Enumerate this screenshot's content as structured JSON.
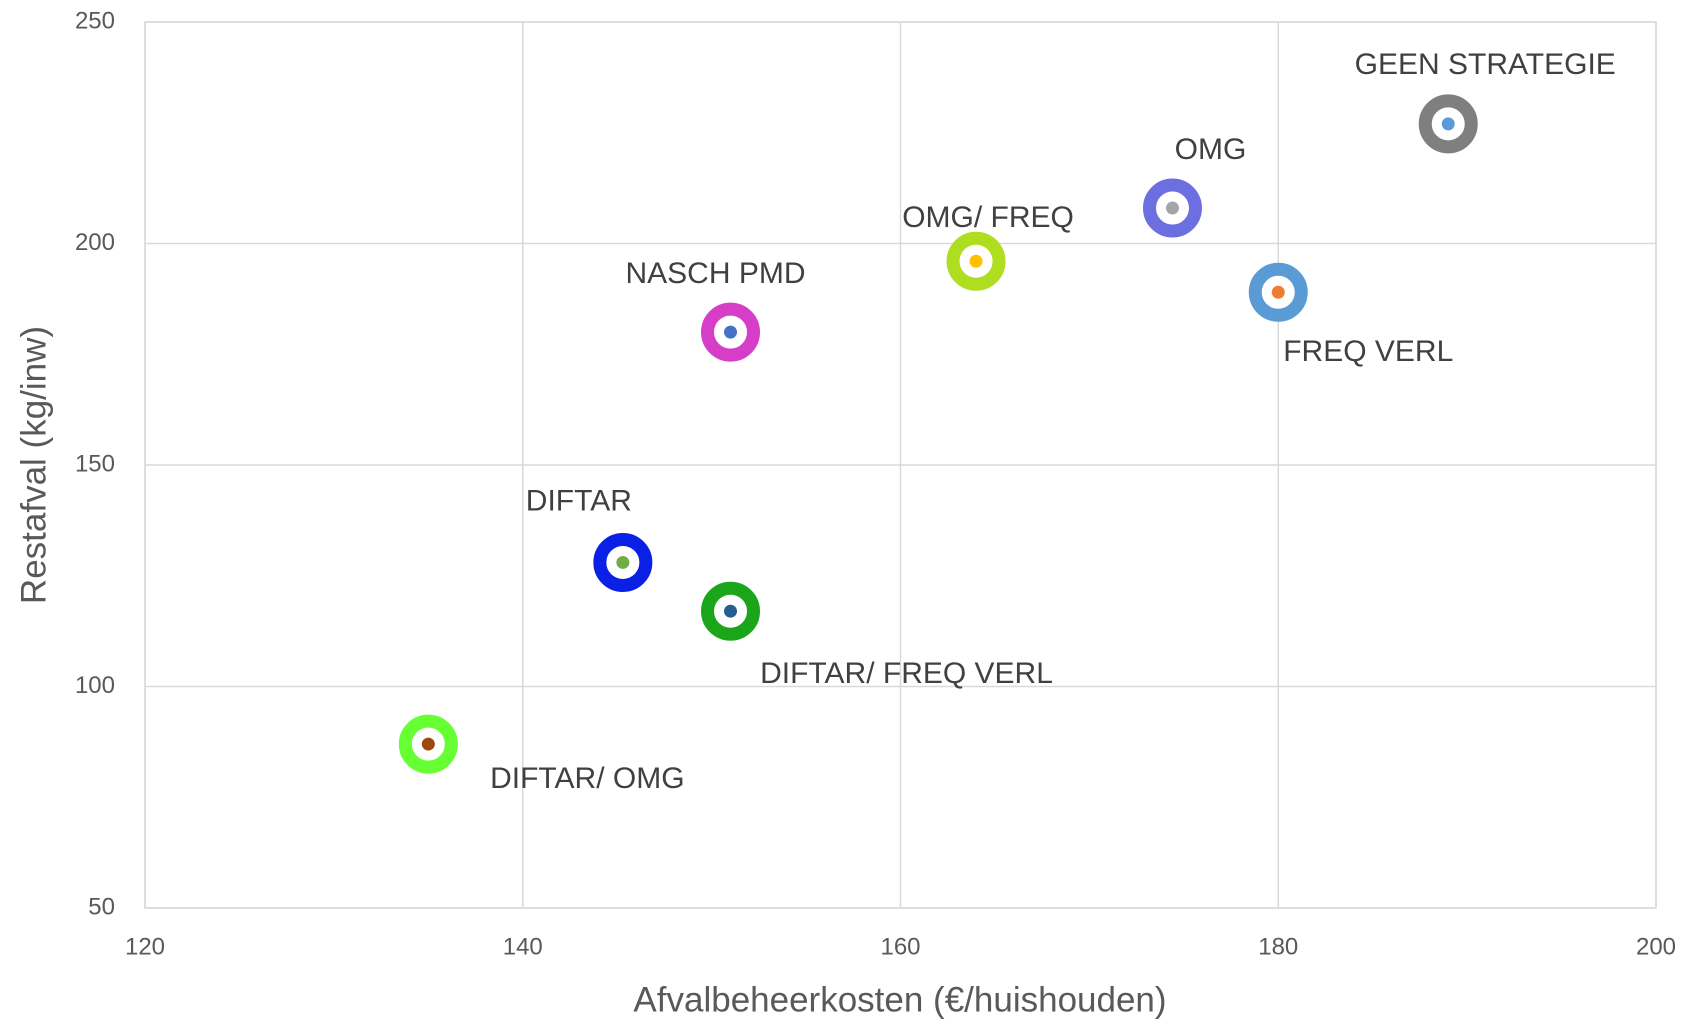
{
  "chart_data": {
    "type": "scatter",
    "xlabel": "Afvalbeheerkosten (€/huishouden)",
    "ylabel": "Restafval (kg/inw)",
    "xlim": [
      120,
      200
    ],
    "xticks": [
      120,
      140,
      160,
      180,
      200
    ],
    "ylim": [
      50,
      250
    ],
    "yticks": [
      50,
      100,
      150,
      200,
      250
    ],
    "grid": true,
    "series": [
      {
        "name": "GEEN STRATEGIE",
        "color": "#7f7f7f",
        "dot_color": "#5b9bd5",
        "x": [
          189
        ],
        "values": [
          227
        ]
      },
      {
        "name": "OMG",
        "color": "#6b6fe0",
        "dot_color": "#a5a5a5",
        "x": [
          174.4
        ],
        "values": [
          208
        ]
      },
      {
        "name": "OMG/ FREQ",
        "color": "#afde20",
        "dot_color": "#ffc000",
        "x": [
          164
        ],
        "values": [
          196
        ]
      },
      {
        "name": "FREQ VERL",
        "color": "#5b9bd5",
        "dot_color": "#ed7d31",
        "x": [
          180
        ],
        "values": [
          189
        ]
      },
      {
        "name": "NASCH PMD",
        "color": "#d63ec8",
        "dot_color": "#4472c4",
        "x": [
          151
        ],
        "values": [
          180
        ]
      },
      {
        "name": "DIFTAR",
        "color": "#0a20e6",
        "dot_color": "#70ad47",
        "x": [
          145.3
        ],
        "values": [
          128
        ]
      },
      {
        "name": "DIFTAR/ FREQ VERL",
        "color": "#1aa51a",
        "dot_color": "#255e91",
        "x": [
          151
        ],
        "values": [
          117
        ]
      },
      {
        "name": "DIFTAR/ OMG",
        "color": "#66ff33",
        "dot_color": "#9e480e",
        "x": [
          135
        ],
        "values": [
          87
        ]
      }
    ]
  }
}
